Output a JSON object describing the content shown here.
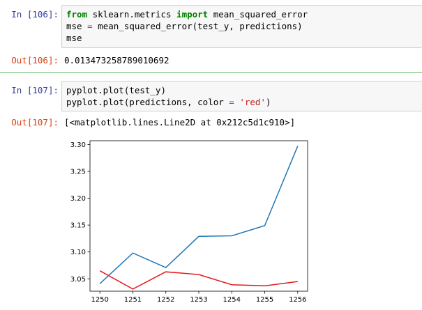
{
  "cells": [
    {
      "in_prompt": "In [106]:",
      "code": [
        [
          {
            "t": "from",
            "c": "kw"
          },
          {
            "t": " sklearn.metrics ",
            "c": ""
          },
          {
            "t": "import",
            "c": "kw"
          },
          {
            "t": " mean_squared_error",
            "c": ""
          }
        ],
        [
          {
            "t": "mse ",
            "c": ""
          },
          {
            "t": "=",
            "c": "op"
          },
          {
            "t": " mean_squared_error(test_y, predictions)",
            "c": ""
          }
        ],
        [
          {
            "t": "mse",
            "c": ""
          }
        ]
      ],
      "out_prompt": "Out[106]:",
      "output": "0.013473258789010692"
    },
    {
      "in_prompt": "In [107]:",
      "code": [
        [
          {
            "t": "pyplot.plot(test_y)",
            "c": ""
          }
        ],
        [
          {
            "t": "pyplot.plot(predictions, color ",
            "c": ""
          },
          {
            "t": "=",
            "c": "op"
          },
          {
            "t": " ",
            "c": ""
          },
          {
            "t": "'red'",
            "c": "str"
          },
          {
            "t": ")",
            "c": ""
          }
        ]
      ],
      "out_prompt": "Out[107]:",
      "output": "[<matplotlib.lines.Line2D at 0x212c5d1c910>]"
    }
  ],
  "chart_data": {
    "type": "line",
    "title": "",
    "xlabel": "",
    "ylabel": "",
    "x": [
      1250,
      1251,
      1252,
      1253,
      1254,
      1255,
      1256
    ],
    "xlim": [
      1249.7,
      1256.3
    ],
    "ylim": [
      3.027,
      3.307
    ],
    "xticks": [
      1250,
      1251,
      1252,
      1253,
      1254,
      1255,
      1256
    ],
    "yticks": [
      "3.05",
      "3.10",
      "3.15",
      "3.20",
      "3.25",
      "3.30"
    ],
    "grid": false,
    "series": [
      {
        "color": "#1f77b4",
        "values": [
          3.041,
          3.098,
          3.071,
          3.129,
          3.13,
          3.149,
          3.297
        ]
      },
      {
        "color": "#e31a1c",
        "values": [
          3.065,
          3.031,
          3.063,
          3.058,
          3.039,
          3.037,
          3.045
        ]
      }
    ]
  }
}
